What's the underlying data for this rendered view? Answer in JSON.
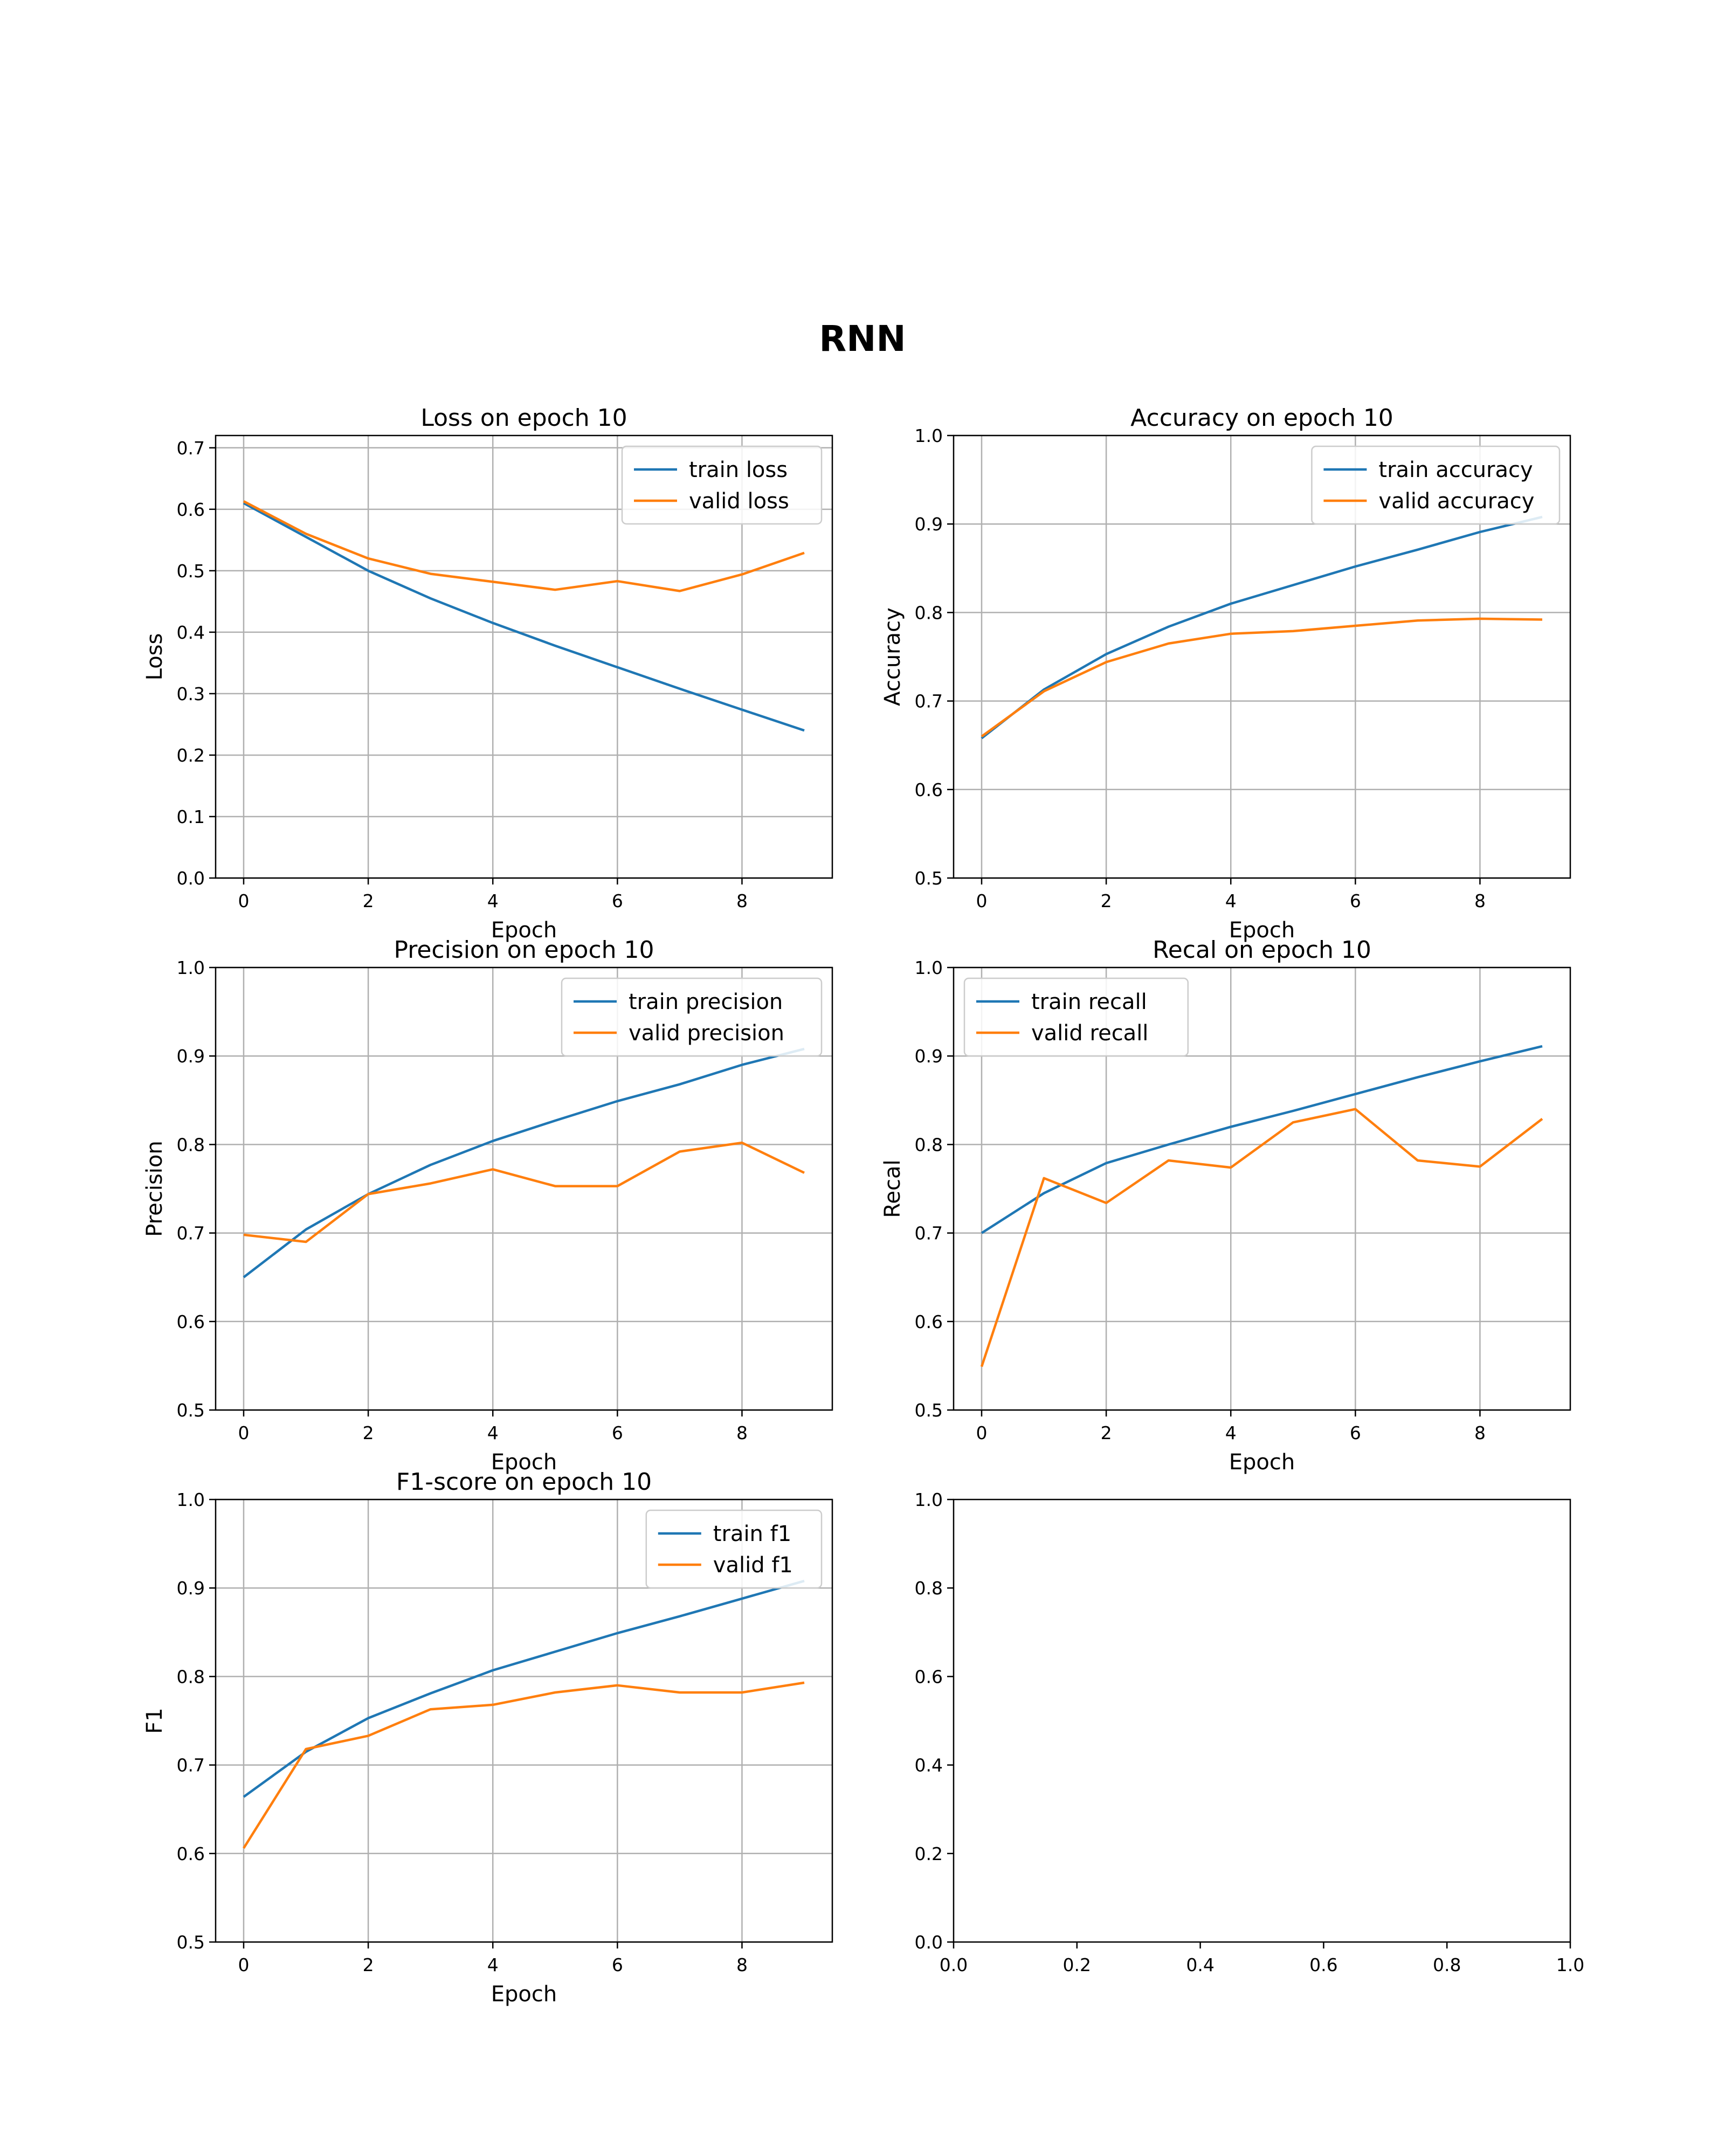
{
  "figure_title": "RNN",
  "colors": {
    "train": "#1f77b4",
    "valid": "#ff7f0e",
    "grid": "#b0b0b0"
  },
  "chart_data": [
    {
      "type": "line",
      "title": "Loss on epoch 10",
      "xlabel": "Epoch",
      "ylabel": "Loss",
      "xlim": [
        -0.45,
        9.45
      ],
      "ylim": [
        0,
        0.72
      ],
      "xticks": [
        0,
        2,
        4,
        6,
        8
      ],
      "xtick_labels": [
        "0",
        "2",
        "4",
        "6",
        "8"
      ],
      "yticks": [
        0,
        0.1,
        0.2,
        0.3,
        0.4,
        0.5,
        0.6,
        0.7
      ],
      "ytick_labels": [
        "0.0",
        "0.1",
        "0.2",
        "0.3",
        "0.4",
        "0.5",
        "0.6",
        "0.7"
      ],
      "grid": true,
      "legend": "top-right",
      "x": [
        0,
        1,
        2,
        3,
        4,
        5,
        6,
        7,
        8,
        9
      ],
      "series": [
        {
          "name": "train loss",
          "color": "#1f77b4",
          "values": [
            0.61,
            0.555,
            0.5,
            0.455,
            0.415,
            0.378,
            0.343,
            0.308,
            0.274,
            0.24
          ]
        },
        {
          "name": "valid loss",
          "color": "#ff7f0e",
          "values": [
            0.613,
            0.56,
            0.52,
            0.495,
            0.482,
            0.469,
            0.483,
            0.467,
            0.494,
            0.529
          ]
        }
      ]
    },
    {
      "type": "line",
      "title": "Accuracy on epoch 10",
      "xlabel": "Epoch",
      "ylabel": "Accuracy",
      "xlim": [
        -0.45,
        9.45
      ],
      "ylim": [
        0.5,
        1.0
      ],
      "xticks": [
        0,
        2,
        4,
        6,
        8
      ],
      "xtick_labels": [
        "0",
        "2",
        "4",
        "6",
        "8"
      ],
      "yticks": [
        0.5,
        0.6,
        0.7,
        0.8,
        0.9,
        1.0
      ],
      "ytick_labels": [
        "0.5",
        "0.6",
        "0.7",
        "0.8",
        "0.9",
        "1.0"
      ],
      "grid": true,
      "legend": "top-right",
      "x": [
        0,
        1,
        2,
        3,
        4,
        5,
        6,
        7,
        8,
        9
      ],
      "series": [
        {
          "name": "train accuracy",
          "color": "#1f77b4",
          "values": [
            0.658,
            0.713,
            0.753,
            0.784,
            0.81,
            0.831,
            0.852,
            0.871,
            0.891,
            0.908
          ]
        },
        {
          "name": "valid accuracy",
          "color": "#ff7f0e",
          "values": [
            0.66,
            0.711,
            0.744,
            0.765,
            0.776,
            0.779,
            0.785,
            0.791,
            0.793,
            0.792
          ]
        }
      ]
    },
    {
      "type": "line",
      "title": "Precision on epoch 10",
      "xlabel": "Epoch",
      "ylabel": "Precision",
      "xlim": [
        -0.45,
        9.45
      ],
      "ylim": [
        0.5,
        1.0
      ],
      "xticks": [
        0,
        2,
        4,
        6,
        8
      ],
      "xtick_labels": [
        "0",
        "2",
        "4",
        "6",
        "8"
      ],
      "yticks": [
        0.5,
        0.6,
        0.7,
        0.8,
        0.9,
        1.0
      ],
      "ytick_labels": [
        "0.5",
        "0.6",
        "0.7",
        "0.8",
        "0.9",
        "1.0"
      ],
      "grid": true,
      "legend": "top-right",
      "x": [
        0,
        1,
        2,
        3,
        4,
        5,
        6,
        7,
        8,
        9
      ],
      "series": [
        {
          "name": "train precision",
          "color": "#1f77b4",
          "values": [
            0.65,
            0.704,
            0.744,
            0.777,
            0.804,
            0.827,
            0.849,
            0.868,
            0.89,
            0.908
          ]
        },
        {
          "name": "valid precision",
          "color": "#ff7f0e",
          "values": [
            0.698,
            0.69,
            0.744,
            0.756,
            0.772,
            0.753,
            0.753,
            0.792,
            0.802,
            0.768
          ]
        }
      ]
    },
    {
      "type": "line",
      "title": "Recal on epoch 10",
      "xlabel": "Epoch",
      "ylabel": "Recal",
      "xlim": [
        -0.45,
        9.45
      ],
      "ylim": [
        0.5,
        1.0
      ],
      "xticks": [
        0,
        2,
        4,
        6,
        8
      ],
      "xtick_labels": [
        "0",
        "2",
        "4",
        "6",
        "8"
      ],
      "yticks": [
        0.5,
        0.6,
        0.7,
        0.8,
        0.9,
        1.0
      ],
      "ytick_labels": [
        "0.5",
        "0.6",
        "0.7",
        "0.8",
        "0.9",
        "1.0"
      ],
      "grid": true,
      "legend": "top-left",
      "x": [
        0,
        1,
        2,
        3,
        4,
        5,
        6,
        7,
        8,
        9
      ],
      "series": [
        {
          "name": "train recall",
          "color": "#1f77b4",
          "values": [
            0.7,
            0.745,
            0.779,
            0.8,
            0.82,
            0.838,
            0.857,
            0.876,
            0.894,
            0.911
          ]
        },
        {
          "name": "valid recall",
          "color": "#ff7f0e",
          "values": [
            0.549,
            0.762,
            0.734,
            0.782,
            0.774,
            0.825,
            0.84,
            0.782,
            0.775,
            0.829
          ]
        }
      ]
    },
    {
      "type": "line",
      "title": "F1-score on epoch 10",
      "xlabel": "Epoch",
      "ylabel": "F1",
      "xlim": [
        -0.45,
        9.45
      ],
      "ylim": [
        0.5,
        1.0
      ],
      "xticks": [
        0,
        2,
        4,
        6,
        8
      ],
      "xtick_labels": [
        "0",
        "2",
        "4",
        "6",
        "8"
      ],
      "yticks": [
        0.5,
        0.6,
        0.7,
        0.8,
        0.9,
        1.0
      ],
      "ytick_labels": [
        "0.5",
        "0.6",
        "0.7",
        "0.8",
        "0.9",
        "1.0"
      ],
      "grid": true,
      "legend": "top-right",
      "x": [
        0,
        1,
        2,
        3,
        4,
        5,
        6,
        7,
        8,
        9
      ],
      "series": [
        {
          "name": "train f1",
          "color": "#1f77b4",
          "values": [
            0.664,
            0.715,
            0.753,
            0.781,
            0.807,
            0.828,
            0.849,
            0.868,
            0.888,
            0.908
          ]
        },
        {
          "name": "valid f1",
          "color": "#ff7f0e",
          "values": [
            0.606,
            0.718,
            0.733,
            0.763,
            0.768,
            0.782,
            0.79,
            0.782,
            0.782,
            0.793
          ]
        }
      ]
    },
    {
      "type": "line",
      "title": "",
      "xlabel": "",
      "ylabel": "",
      "xlim": [
        0,
        1
      ],
      "ylim": [
        0,
        1
      ],
      "xticks": [
        0,
        0.2,
        0.4,
        0.6,
        0.8,
        1.0
      ],
      "xtick_labels": [
        "0.0",
        "0.2",
        "0.4",
        "0.6",
        "0.8",
        "1.0"
      ],
      "yticks": [
        0,
        0.2,
        0.4,
        0.6,
        0.8,
        1.0
      ],
      "ytick_labels": [
        "0.0",
        "0.2",
        "0.4",
        "0.6",
        "0.8",
        "1.0"
      ],
      "grid": false,
      "legend": "",
      "x": [],
      "series": []
    }
  ]
}
